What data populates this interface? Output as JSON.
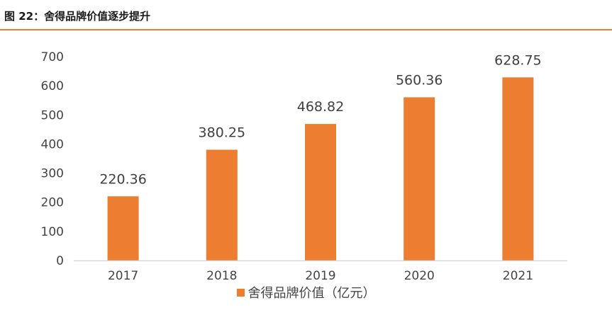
{
  "figure": {
    "title": "图 22：舍得品牌价值逐步提升"
  },
  "colors": {
    "bar": "#ed7d31",
    "accent_rule": "#ed7d31",
    "axis": "#d9d9d9",
    "text": "#404040"
  },
  "chart_data": {
    "type": "bar",
    "title": "",
    "xlabel": "",
    "ylabel": "",
    "categories": [
      "2017",
      "2018",
      "2019",
      "2020",
      "2021"
    ],
    "series": [
      {
        "name": "舍得品牌价值（亿元）",
        "values": [
          220.36,
          380.25,
          468.82,
          560.36,
          628.75
        ],
        "value_labels": [
          "220.36",
          "380.25",
          "468.82",
          "560.36",
          "628.75"
        ]
      }
    ],
    "ylim": [
      0,
      700
    ],
    "yticks": [
      "0",
      "100",
      "200",
      "300",
      "400",
      "500",
      "600",
      "700"
    ],
    "grid": false,
    "legend_position": "bottom"
  }
}
